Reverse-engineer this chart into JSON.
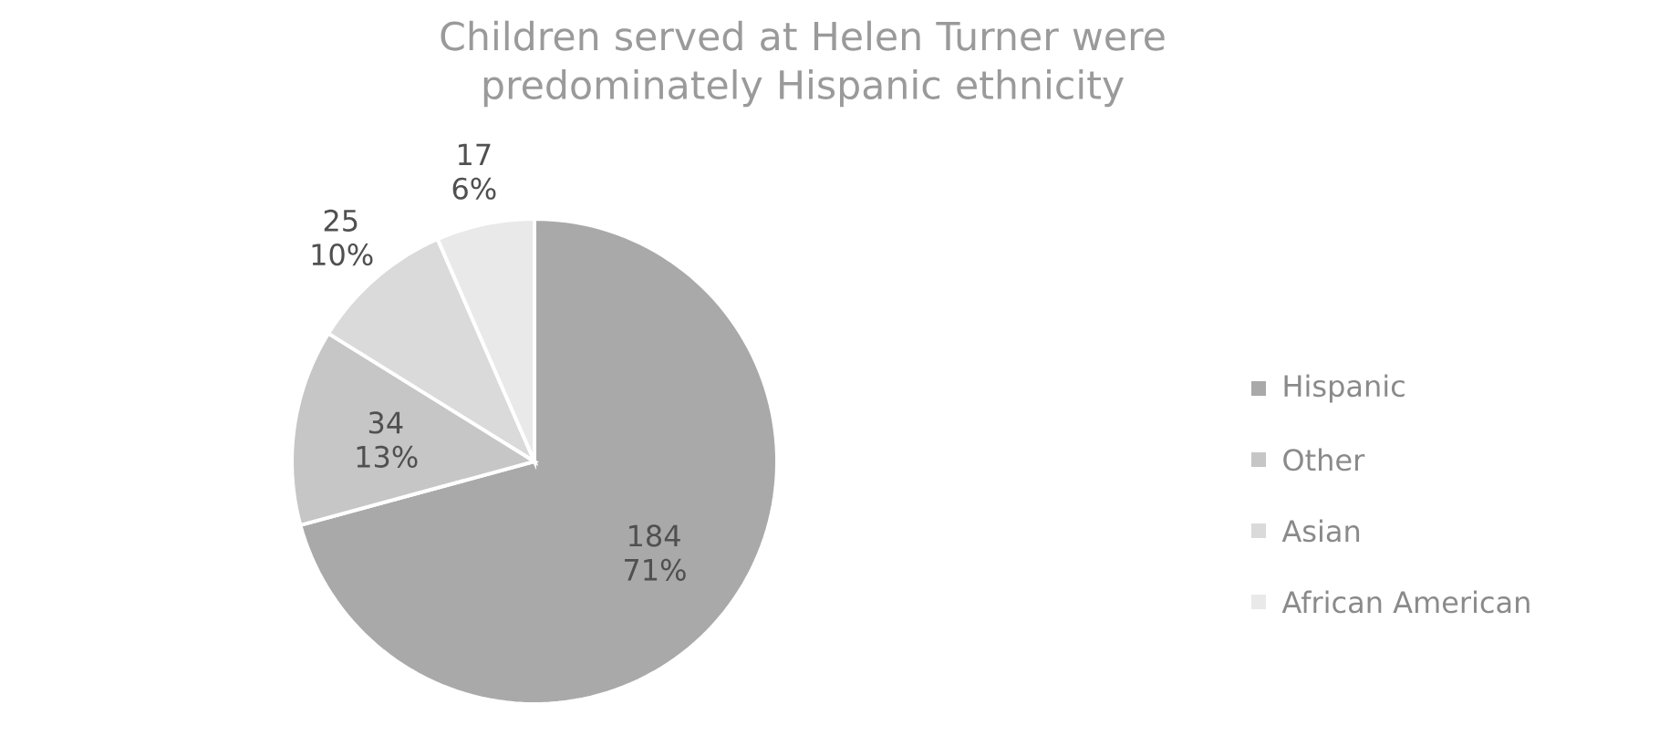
{
  "chart_data": {
    "type": "pie",
    "title": "Children served at Helen Turner were predominately Hispanic ethnicity",
    "categories": [
      "Hispanic",
      "Other",
      "Asian",
      "African American"
    ],
    "values": [
      184,
      34,
      25,
      17
    ],
    "value_labels": [
      "184 71%",
      "34 13%",
      "25 10%",
      "17 6%"
    ],
    "colors": [
      "#a9a9a9",
      "#c6c6c6",
      "#dadada",
      "#e9e9e9"
    ],
    "legend": "right"
  }
}
